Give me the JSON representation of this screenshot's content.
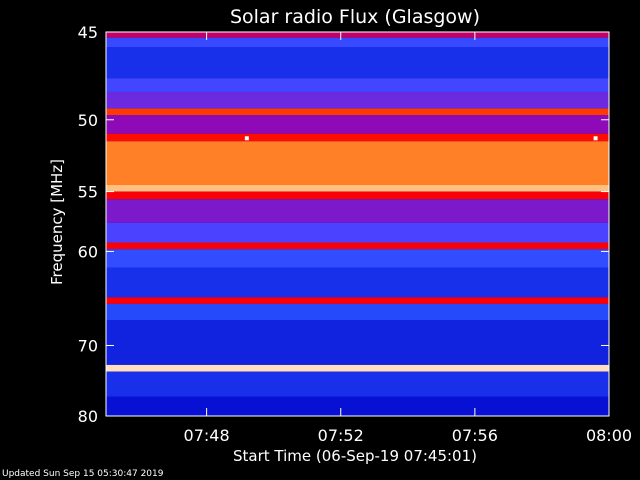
{
  "chart_data": {
    "type": "heatmap",
    "title": "Solar radio Flux (Glasgow)",
    "xlabel": "Start Time (06-Sep-19 07:45:01)",
    "ylabel": "Frequency [MHz]",
    "x_tick_labels": [
      "07:48",
      "07:52",
      "07:56",
      "08:00"
    ],
    "x_tick_minutes": [
      3,
      7,
      11,
      15
    ],
    "x_range_minutes": [
      0,
      15
    ],
    "y_tick_values": [
      45,
      50,
      55,
      60,
      70,
      80
    ],
    "y_range_mhz": [
      45,
      80
    ],
    "y_axis_scale": "reciprocal",
    "colormap": [
      "#00004a",
      "#0000c8",
      "#2850ff",
      "#5040ff",
      "#9a00a8",
      "#ff0000",
      "#ff6000",
      "#ffb060",
      "#ffffff"
    ],
    "background_level": 0.12,
    "bands": [
      {
        "mhz": [
          45.0,
          45.3
        ],
        "level": 0.55
      },
      {
        "mhz": [
          45.3,
          45.8
        ],
        "level": 0.3
      },
      {
        "mhz": [
          45.8,
          47.5
        ],
        "level": 0.2
      },
      {
        "mhz": [
          47.5,
          48.3
        ],
        "level": 0.33
      },
      {
        "mhz": [
          48.3,
          49.3
        ],
        "level": 0.42
      },
      {
        "mhz": [
          49.3,
          49.7
        ],
        "level": 0.7
      },
      {
        "mhz": [
          49.7,
          50.9
        ],
        "level": 0.48
      },
      {
        "mhz": [
          50.9,
          51.4
        ],
        "level": 0.64
      },
      {
        "mhz": [
          51.4,
          54.5
        ],
        "level": 0.8
      },
      {
        "mhz": [
          54.5,
          55.0
        ],
        "level": 0.9
      },
      {
        "mhz": [
          55.0,
          55.6
        ],
        "level": 0.62
      },
      {
        "mhz": [
          55.6,
          57.5
        ],
        "level": 0.45
      },
      {
        "mhz": [
          57.5,
          59.2
        ],
        "level": 0.36
      },
      {
        "mhz": [
          59.2,
          59.8
        ],
        "level": 0.62
      },
      {
        "mhz": [
          59.8,
          61.5
        ],
        "level": 0.28
      },
      {
        "mhz": [
          61.5,
          64.5
        ],
        "level": 0.2
      },
      {
        "mhz": [
          64.5,
          65.2
        ],
        "level": 0.62
      },
      {
        "mhz": [
          65.2,
          67.0
        ],
        "level": 0.24
      },
      {
        "mhz": [
          67.0,
          72.5
        ],
        "level": 0.18
      },
      {
        "mhz": [
          72.5,
          73.4
        ],
        "level": 0.95
      },
      {
        "mhz": [
          73.4,
          77.0
        ],
        "level": 0.2
      },
      {
        "mhz": [
          77.0,
          80.0
        ],
        "level": 0.15
      }
    ],
    "hotspots": [
      {
        "minute": 4.2,
        "mhz": 51.2,
        "level": 1.0
      },
      {
        "minute": 14.6,
        "mhz": 51.2,
        "level": 1.0
      }
    ]
  },
  "footer": "Updated Sun Sep 15 05:30:47 2019"
}
